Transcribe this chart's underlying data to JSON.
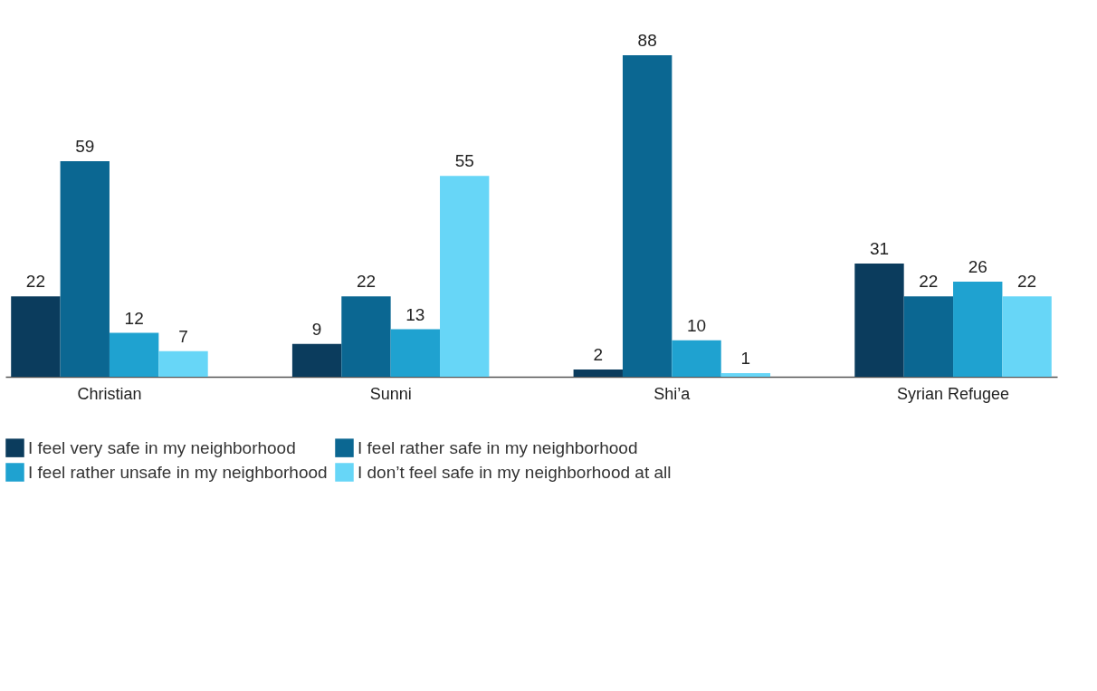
{
  "chart_data": {
    "type": "bar",
    "categories": [
      "Christian",
      "Sunni",
      "Shi’a",
      "Syrian Refugee"
    ],
    "series": [
      {
        "name": "I feel very safe in my neighborhood",
        "color": "#0b3c5d",
        "values": [
          22,
          9,
          2,
          31
        ]
      },
      {
        "name": "I feel rather safe in my neighborhood",
        "color": "#0b6792",
        "values": [
          59,
          22,
          88,
          22
        ]
      },
      {
        "name": "I feel rather unsafe in my neighborhood",
        "color": "#1fa2d0",
        "values": [
          12,
          13,
          10,
          26
        ]
      },
      {
        "name": "I don’t feel safe in my neighborhood at all",
        "color": "#67d6f7",
        "values": [
          7,
          55,
          1,
          22
        ]
      }
    ],
    "data_labels": true,
    "legend": "bottom"
  }
}
